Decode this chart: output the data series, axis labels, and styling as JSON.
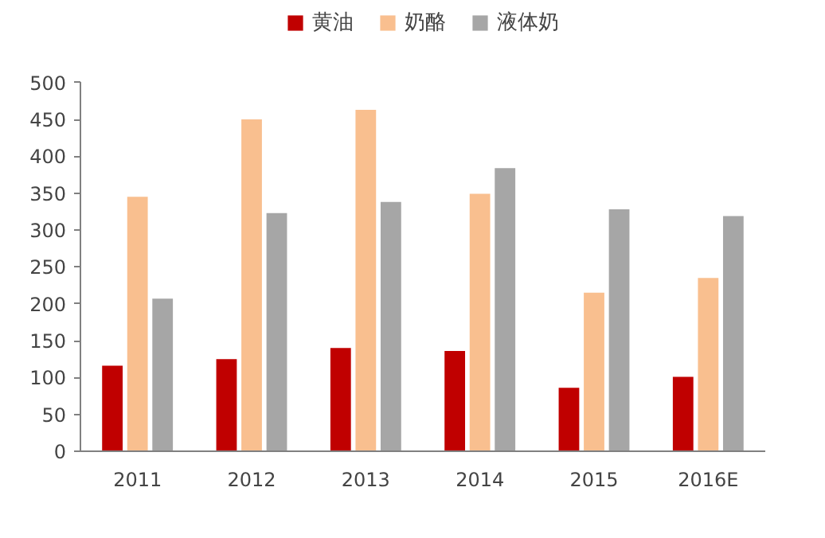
{
  "chart_data": {
    "type": "bar",
    "categories": [
      "2011",
      "2012",
      "2013",
      "2014",
      "2015",
      "2016E"
    ],
    "series": [
      {
        "name": "黄油",
        "color": "#c00000",
        "values": [
          116,
          125,
          140,
          136,
          86,
          101
        ]
      },
      {
        "name": "奶酪",
        "color": "#f9bf8f",
        "values": [
          345,
          450,
          463,
          349,
          215,
          235
        ]
      },
      {
        "name": "液体奶",
        "color": "#a6a6a6",
        "values": [
          207,
          323,
          338,
          384,
          328,
          319
        ]
      }
    ],
    "ylim": [
      0,
      500
    ],
    "yticks": [
      0,
      50,
      100,
      150,
      200,
      250,
      300,
      350,
      400,
      450,
      500
    ],
    "grid": false,
    "legend": "top"
  }
}
